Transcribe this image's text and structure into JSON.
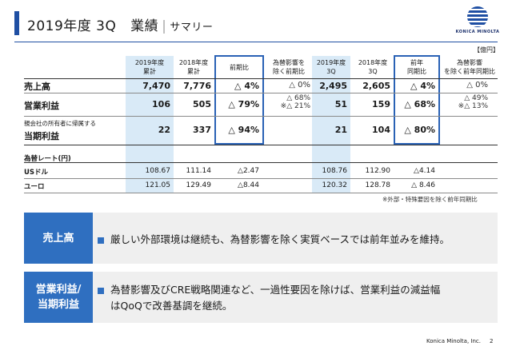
{
  "header": {
    "title_year": "2019年度",
    "title_quarter": "3Q",
    "title_main": "業績",
    "title_sep": "|",
    "title_sub": "サマリー",
    "logo_text": "KONICA MINOLTA"
  },
  "unit": "【億円】",
  "columns": {
    "c1": [
      "2019年度",
      "累計"
    ],
    "c2": [
      "2018年度",
      "累計"
    ],
    "c3": [
      "前期比"
    ],
    "c4": [
      "為替影響を",
      "除く前期比"
    ],
    "c5": [
      "2019年度",
      "3Q"
    ],
    "c6": [
      "2018年度",
      "3Q"
    ],
    "c7": [
      "前年",
      "同期比"
    ],
    "c8": [
      "為替影響",
      "を除く前年同期比"
    ]
  },
  "rows": {
    "sales": {
      "label": "売上高",
      "v1": "7,470",
      "v2": "7,776",
      "v3": "△ 4%",
      "v4": "△ 0%",
      "v5": "2,495",
      "v6": "2,605",
      "v7": "△ 4%",
      "v8": "△ 0%"
    },
    "op": {
      "label": "営業利益",
      "v1": "106",
      "v2": "505",
      "v3": "△ 79%",
      "v4a": "△ 68%",
      "v4b": "※△ 21%",
      "v5": "51",
      "v6": "159",
      "v7": "△ 68%",
      "v8a": "△ 49%",
      "v8b": "※△ 13%"
    },
    "net": {
      "label_small": "親会社の所有者に帰属する",
      "label": "当期利益",
      "v1": "22",
      "v2": "337",
      "v3": "△ 94%",
      "v5": "21",
      "v6": "104",
      "v7": "△ 80%"
    }
  },
  "fx": {
    "title": "為替レート(円)",
    "usd": {
      "label": "USドル",
      "v1": "108.67",
      "v2": "111.14",
      "v3": "△2.47",
      "v5": "108.76",
      "v6": "112.90",
      "v7": "△4.14"
    },
    "eur": {
      "label": "ユーロ",
      "v1": "121.05",
      "v2": "129.49",
      "v3": "△8.44",
      "v5": "120.32",
      "v6": "128.78",
      "v7": "△ 8.46"
    }
  },
  "note": "※外部・特殊要因を除く前年同期比",
  "panels": {
    "p1": {
      "label": "売上高",
      "text": "厳しい外部環境は継続も、為替影響を除く実質ベースでは前年並みを維持。"
    },
    "p2": {
      "label_line1": "営業利益/",
      "label_line2": "当期利益",
      "text_line1": "為替影響及びCRE戦略関連など、一過性要因を除けば、営業利益の減益幅",
      "text_line2": "はQoQで改善基調を継続。"
    }
  },
  "footer": {
    "company": "Konica Minolta, Inc.",
    "page": "2"
  },
  "colors": {
    "accent": "#2f6fc0",
    "highlight": "#d9eaf7",
    "panel_bg": "#efefef"
  }
}
